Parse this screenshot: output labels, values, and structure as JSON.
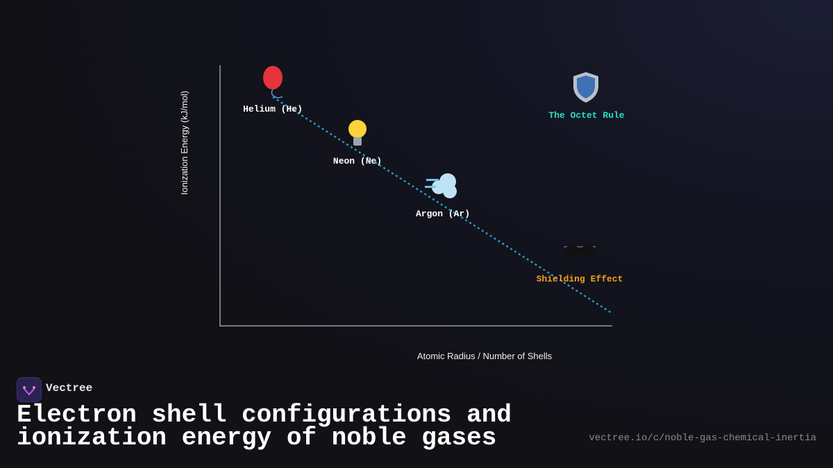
{
  "axes": {
    "y_label": "Ionization Energy (kJ/mol)",
    "x_label": "Atomic Radius / Number of Shells"
  },
  "nodes": [
    {
      "label": "Helium (He)"
    },
    {
      "label": "Neon (Ne)"
    },
    {
      "label": "Argon (Ar)"
    }
  ],
  "annotations": [
    {
      "label": "The Octet Rule"
    },
    {
      "label": "Shielding Effect"
    }
  ],
  "brand": "Vectree",
  "title": "Electron shell configurations and ionization energy of noble gases",
  "url": "vectree.io/c/noble-gas-chemical-inertia"
}
